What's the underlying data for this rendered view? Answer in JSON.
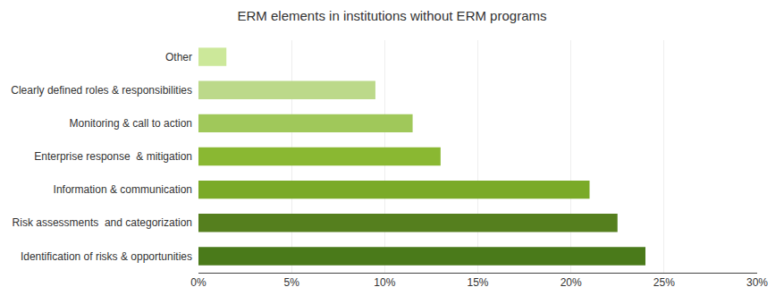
{
  "chart_data": {
    "type": "bar",
    "orientation": "horizontal",
    "title": "ERM elements in institutions without ERM programs",
    "categories": [
      "Identification of risks & opportunities",
      "Risk assessments  and categorization",
      "Information & communication",
      "Enterprise response  & mitigation",
      "Monitoring & call to action",
      "Clearly defined roles & responsibilities",
      "Other"
    ],
    "values": [
      24,
      22.5,
      21,
      13,
      11.5,
      9.5,
      1.5
    ],
    "colors": [
      "#4a7a1a",
      "#557f1e",
      "#7aaa28",
      "#8ab832",
      "#a0c85a",
      "#bcd98a",
      "#cce89a"
    ],
    "xlim": [
      0,
      30
    ],
    "xticks": [
      {
        "value": 0,
        "label": "0%"
      },
      {
        "value": 5,
        "label": "5%"
      },
      {
        "value": 10,
        "label": "10%"
      },
      {
        "value": 15,
        "label": "15%"
      },
      {
        "value": 20,
        "label": "20%"
      },
      {
        "value": 25,
        "label": "25%"
      },
      {
        "value": 30,
        "label": "30%"
      }
    ],
    "grid": true
  }
}
